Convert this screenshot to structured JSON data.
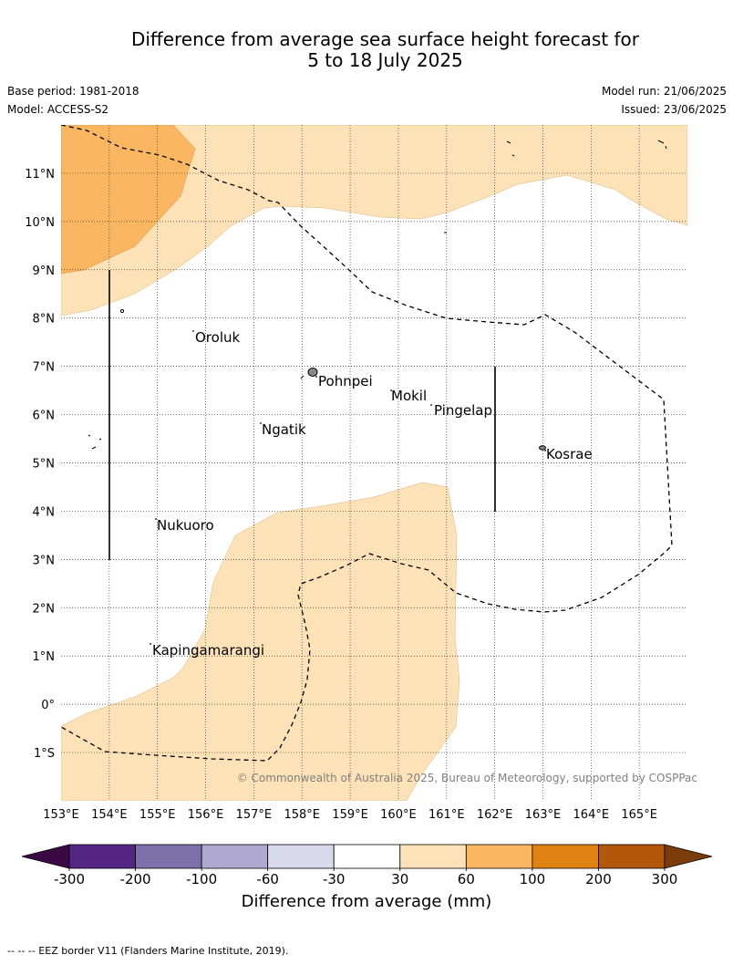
{
  "title_line1": "Difference from average sea surface height forecast for",
  "title_line2": "5 to 18 July 2025",
  "base_period": "Base period: 1981-2018",
  "model": "Model: ACCESS-S2",
  "model_run": "Model run: 21/06/2025",
  "issued": "Issued: 23/06/2025",
  "copyright": "© Commonwealth of Australia 2025, Bureau of Meteorology, supported by COSPPac",
  "footnote": "--  --  -- EEZ border V11 (Flanders Marine Institute, 2019).",
  "colorbar": {
    "title": "Difference from average (mm)",
    "ticks": [
      "-300",
      "-200",
      "-100",
      "-60",
      "-30",
      "30",
      "60",
      "100",
      "200",
      "300"
    ],
    "colors": {
      "below_min": "#3b0a45",
      "bins": [
        "#552586",
        "#7e71ab",
        "#b0a9d1",
        "#d9d9ec",
        "#ffffff",
        "#fde2b8",
        "#fbb661",
        "#e08314",
        "#b3570a"
      ],
      "above_max": "#7a3c0a"
    }
  },
  "map": {
    "lon_range": [
      153,
      166
    ],
    "lat_range": [
      -2,
      12
    ],
    "lon_ticks": [
      "153°E",
      "154°E",
      "155°E",
      "156°E",
      "157°E",
      "158°E",
      "159°E",
      "160°E",
      "161°E",
      "162°E",
      "163°E",
      "164°E",
      "165°E"
    ],
    "lat_ticks": [
      "11°N",
      "10°N",
      "9°N",
      "8°N",
      "7°N",
      "6°N",
      "5°N",
      "4°N",
      "3°N",
      "2°N",
      "1°N",
      "0°",
      "1°S"
    ],
    "places": [
      "Oroluk",
      "Pohnpei",
      "Mokil",
      "Pingelap",
      "Ngatik",
      "Kosrae",
      "Nukuoro",
      "Kapingamarangi"
    ],
    "grid": "dotted",
    "eez_border": "dashed"
  }
}
